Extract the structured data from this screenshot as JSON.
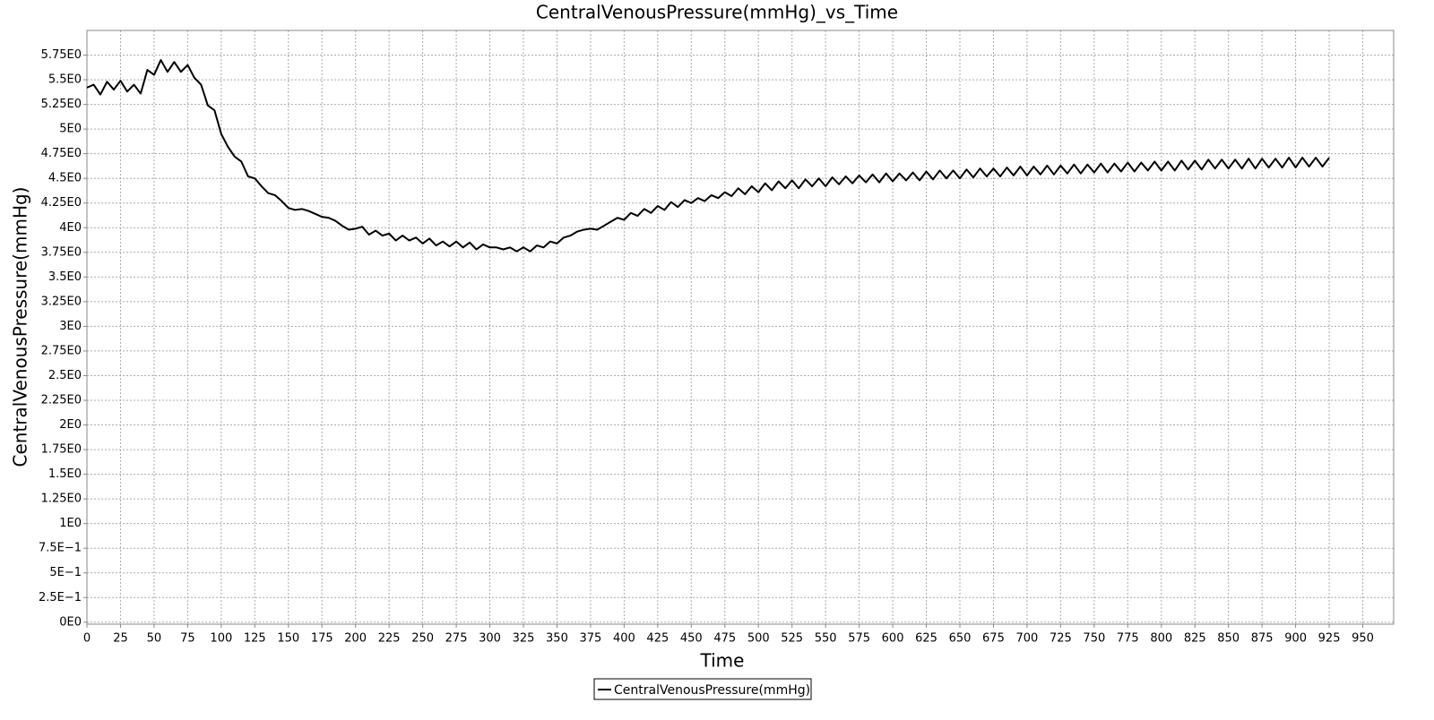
{
  "chart_data": {
    "type": "line",
    "title": "CentralVenousPressure(mmHg)_vs_Time",
    "x_label": "Time",
    "y_label": "CentralVenousPressure(mmHg)",
    "grid": true,
    "legend_position": "bottom",
    "xlim": [
      0,
      973
    ],
    "ylim": [
      -0.02,
      6.0
    ],
    "xticks": [
      0,
      25,
      50,
      75,
      100,
      125,
      150,
      175,
      200,
      225,
      250,
      275,
      300,
      325,
      350,
      375,
      400,
      425,
      450,
      475,
      500,
      525,
      550,
      575,
      600,
      625,
      650,
      675,
      700,
      725,
      750,
      775,
      800,
      825,
      850,
      875,
      900,
      925,
      950
    ],
    "yticks": [
      {
        "value": 0,
        "label": "0E0"
      },
      {
        "value": 0.25,
        "label": "2.5E−1"
      },
      {
        "value": 0.5,
        "label": "5E−1"
      },
      {
        "value": 0.75,
        "label": "7.5E−1"
      },
      {
        "value": 1,
        "label": "1E0"
      },
      {
        "value": 1.25,
        "label": "1.25E0"
      },
      {
        "value": 1.5,
        "label": "1.5E0"
      },
      {
        "value": 1.75,
        "label": "1.75E0"
      },
      {
        "value": 2,
        "label": "2E0"
      },
      {
        "value": 2.25,
        "label": "2.25E0"
      },
      {
        "value": 2.5,
        "label": "2.5E0"
      },
      {
        "value": 2.75,
        "label": "2.75E0"
      },
      {
        "value": 3,
        "label": "3E0"
      },
      {
        "value": 3.25,
        "label": "3.25E0"
      },
      {
        "value": 3.5,
        "label": "3.5E0"
      },
      {
        "value": 3.75,
        "label": "3.75E0"
      },
      {
        "value": 4,
        "label": "4E0"
      },
      {
        "value": 4.25,
        "label": "4.25E0"
      },
      {
        "value": 4.5,
        "label": "4.5E0"
      },
      {
        "value": 4.75,
        "label": "4.75E0"
      },
      {
        "value": 5,
        "label": "5E0"
      },
      {
        "value": 5.25,
        "label": "5.25E0"
      },
      {
        "value": 5.5,
        "label": "5.5E0"
      },
      {
        "value": 5.75,
        "label": "5.75E0"
      }
    ],
    "x": [
      0,
      5,
      10,
      15,
      20,
      25,
      30,
      35,
      40,
      45,
      50,
      55,
      60,
      65,
      70,
      75,
      80,
      85,
      90,
      95,
      100,
      105,
      110,
      115,
      120,
      125,
      130,
      135,
      140,
      145,
      150,
      155,
      160,
      165,
      170,
      175,
      180,
      185,
      190,
      195,
      200,
      205,
      210,
      215,
      220,
      225,
      230,
      235,
      240,
      245,
      250,
      255,
      260,
      265,
      270,
      275,
      280,
      285,
      290,
      295,
      300,
      305,
      310,
      315,
      320,
      325,
      330,
      335,
      340,
      345,
      350,
      355,
      360,
      365,
      370,
      375,
      380,
      385,
      390,
      395,
      400,
      405,
      410,
      415,
      420,
      425,
      430,
      435,
      440,
      445,
      450,
      455,
      460,
      465,
      470,
      475,
      480,
      485,
      490,
      495,
      500,
      505,
      510,
      515,
      520,
      525,
      530,
      535,
      540,
      545,
      550,
      555,
      560,
      565,
      570,
      575,
      580,
      585,
      590,
      595,
      600,
      605,
      610,
      615,
      620,
      625,
      630,
      635,
      640,
      645,
      650,
      655,
      660,
      665,
      670,
      675,
      680,
      685,
      690,
      695,
      700,
      705,
      710,
      715,
      720,
      725,
      730,
      735,
      740,
      745,
      750,
      755,
      760,
      765,
      770,
      775,
      780,
      785,
      790,
      795,
      800,
      805,
      810,
      815,
      820,
      825,
      830,
      835,
      840,
      845,
      850,
      855,
      860,
      865,
      870,
      875,
      880,
      885,
      890,
      895,
      900,
      905,
      910,
      915,
      920,
      925
    ],
    "series": [
      {
        "name": "CentralVenousPressure(mmHg)",
        "color": "#000000",
        "values": [
          5.42,
          5.45,
          5.35,
          5.48,
          5.4,
          5.49,
          5.38,
          5.45,
          5.36,
          5.6,
          5.55,
          5.7,
          5.58,
          5.68,
          5.58,
          5.65,
          5.52,
          5.45,
          5.24,
          5.19,
          4.95,
          4.82,
          4.72,
          4.67,
          4.52,
          4.5,
          4.42,
          4.35,
          4.33,
          4.27,
          4.2,
          4.18,
          4.19,
          4.17,
          4.14,
          4.11,
          4.1,
          4.07,
          4.02,
          3.98,
          3.99,
          4.01,
          3.93,
          3.97,
          3.92,
          3.94,
          3.87,
          3.92,
          3.87,
          3.9,
          3.84,
          3.89,
          3.82,
          3.86,
          3.81,
          3.86,
          3.8,
          3.85,
          3.78,
          3.83,
          3.8,
          3.8,
          3.78,
          3.8,
          3.76,
          3.8,
          3.76,
          3.82,
          3.8,
          3.86,
          3.84,
          3.9,
          3.92,
          3.96,
          3.98,
          3.99,
          3.98,
          4.02,
          4.06,
          4.1,
          4.08,
          4.15,
          4.12,
          4.19,
          4.15,
          4.22,
          4.18,
          4.26,
          4.21,
          4.28,
          4.25,
          4.3,
          4.27,
          4.33,
          4.3,
          4.36,
          4.32,
          4.4,
          4.34,
          4.42,
          4.36,
          4.45,
          4.38,
          4.47,
          4.4,
          4.48,
          4.4,
          4.49,
          4.42,
          4.5,
          4.42,
          4.51,
          4.44,
          4.52,
          4.45,
          4.53,
          4.46,
          4.54,
          4.46,
          4.55,
          4.47,
          4.55,
          4.48,
          4.56,
          4.48,
          4.57,
          4.49,
          4.58,
          4.5,
          4.58,
          4.5,
          4.59,
          4.51,
          4.6,
          4.52,
          4.6,
          4.52,
          4.61,
          4.53,
          4.62,
          4.53,
          4.62,
          4.54,
          4.63,
          4.54,
          4.63,
          4.55,
          4.64,
          4.55,
          4.64,
          4.56,
          4.65,
          4.56,
          4.65,
          4.57,
          4.66,
          4.57,
          4.66,
          4.58,
          4.67,
          4.58,
          4.67,
          4.58,
          4.68,
          4.59,
          4.68,
          4.59,
          4.69,
          4.6,
          4.69,
          4.6,
          4.69,
          4.6,
          4.7,
          4.6,
          4.7,
          4.61,
          4.7,
          4.61,
          4.71,
          4.61,
          4.71,
          4.62,
          4.71,
          4.62,
          4.71
        ]
      }
    ]
  }
}
